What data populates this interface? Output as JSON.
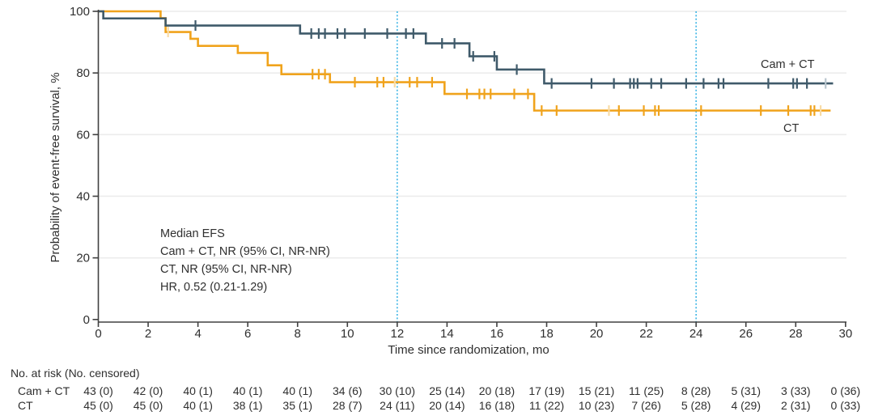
{
  "figure": {
    "y_axis_title": "Probability of event-free survival, %",
    "x_axis_title": "Time since randomization, mo",
    "annotation": {
      "lines": [
        "Median EFS",
        "Cam + CT, NR (95% CI, NR-NR)",
        "CT, NR (95% CI, NR-NR)",
        "HR, 0.52 (0.21-1.29)"
      ]
    },
    "curve_labels": {
      "cam_ct": "Cam + CT",
      "ct": "CT"
    }
  },
  "colors": {
    "cam_ct": "#3f5a6a",
    "cam_ct_pale": "#b9c6ce",
    "ct": "#f0a31c",
    "ct_pale": "#f8dba6",
    "reference_line": "#3cb4e5",
    "gridline": "#ececec",
    "axis": "#404040",
    "text": "#2f2f2f"
  },
  "chart_data": {
    "type": "line",
    "subtype": "kaplan-meier-step",
    "title": "",
    "xlabel": "Time since randomization, mo",
    "ylabel": "Probability of event-free survival, %",
    "xlim": [
      0,
      30
    ],
    "ylim": [
      0,
      100
    ],
    "x_ticks": [
      0,
      2,
      4,
      6,
      8,
      10,
      12,
      14,
      16,
      18,
      20,
      22,
      24,
      26,
      28,
      30
    ],
    "y_ticks": [
      0,
      20,
      40,
      60,
      80,
      100
    ],
    "grid": "horizontal-light",
    "legend_position": "labels-on-curves",
    "reference_lines_x": [
      12,
      24
    ],
    "series": [
      {
        "name": "CT",
        "color_key": "ct",
        "steps": [
          [
            0,
            100
          ],
          [
            2.5,
            97.8
          ],
          [
            2.7,
            93.3
          ],
          [
            3.7,
            91.1
          ],
          [
            4.0,
            88.8
          ],
          [
            5.6,
            86.5
          ],
          [
            6.8,
            82.5
          ],
          [
            7.35,
            79.6
          ],
          [
            9.3,
            77.0
          ],
          [
            13.9,
            73.2
          ],
          [
            17.5,
            67.8
          ]
        ],
        "end_x": 29.4,
        "censors": [
          [
            8.6,
            79.6
          ],
          [
            8.85,
            79.6
          ],
          [
            9.1,
            79.6
          ],
          [
            10.3,
            77.0
          ],
          [
            11.2,
            77.0
          ],
          [
            11.45,
            77.0
          ],
          [
            12.5,
            77.0
          ],
          [
            12.8,
            77.0
          ],
          [
            13.4,
            77.0
          ],
          [
            14.8,
            73.2
          ],
          [
            15.3,
            73.2
          ],
          [
            15.5,
            73.2
          ],
          [
            15.75,
            73.2
          ],
          [
            16.7,
            73.2
          ],
          [
            17.25,
            73.2
          ],
          [
            17.8,
            67.8
          ],
          [
            18.4,
            67.8
          ],
          [
            20.9,
            67.8
          ],
          [
            21.9,
            67.8
          ],
          [
            22.35,
            67.8
          ],
          [
            22.5,
            67.8
          ],
          [
            24.2,
            67.8
          ],
          [
            26.6,
            67.8
          ],
          [
            27.7,
            67.8
          ],
          [
            28.6,
            67.8
          ],
          [
            28.75,
            67.8
          ]
        ],
        "pale_censors": [
          [
            2.8,
            93.3
          ],
          [
            11.9,
            77.0
          ],
          [
            20.5,
            67.8
          ],
          [
            29.0,
            67.8
          ]
        ]
      },
      {
        "name": "Cam + CT",
        "color_key": "cam_ct",
        "steps": [
          [
            0,
            100
          ],
          [
            0.2,
            97.7
          ],
          [
            2.7,
            95.4
          ],
          [
            8.1,
            92.8
          ],
          [
            13.15,
            89.6
          ],
          [
            14.9,
            85.4
          ],
          [
            16.0,
            81.1
          ],
          [
            17.9,
            76.6
          ]
        ],
        "end_x": 29.5,
        "censors": [
          [
            3.9,
            95.4
          ],
          [
            8.55,
            92.8
          ],
          [
            8.85,
            92.8
          ],
          [
            9.1,
            92.8
          ],
          [
            9.6,
            92.8
          ],
          [
            9.9,
            92.8
          ],
          [
            10.7,
            92.8
          ],
          [
            11.6,
            92.8
          ],
          [
            12.35,
            92.8
          ],
          [
            12.65,
            92.8
          ],
          [
            13.8,
            89.6
          ],
          [
            14.3,
            89.6
          ],
          [
            15.05,
            85.4
          ],
          [
            15.9,
            85.4
          ],
          [
            16.8,
            81.1
          ],
          [
            18.2,
            76.6
          ],
          [
            19.8,
            76.6
          ],
          [
            20.7,
            76.6
          ],
          [
            21.35,
            76.6
          ],
          [
            21.5,
            76.6
          ],
          [
            21.65,
            76.6
          ],
          [
            22.2,
            76.6
          ],
          [
            22.6,
            76.6
          ],
          [
            23.6,
            76.6
          ],
          [
            24.3,
            76.6
          ],
          [
            24.9,
            76.6
          ],
          [
            25.1,
            76.6
          ],
          [
            26.9,
            76.6
          ],
          [
            27.9,
            76.6
          ],
          [
            28.05,
            76.6
          ],
          [
            28.45,
            76.6
          ]
        ],
        "pale_censors": [
          [
            29.2,
            76.6
          ]
        ]
      }
    ],
    "risk_table": {
      "header": "No. at risk (No. censored)",
      "times": [
        0,
        2,
        4,
        6,
        8,
        10,
        12,
        14,
        16,
        18,
        20,
        22,
        24,
        26,
        28,
        30
      ],
      "rows": [
        {
          "label": "Cam + CT",
          "values": [
            "43 (0)",
            "42 (0)",
            "40 (1)",
            "40 (1)",
            "40 (1)",
            "34 (6)",
            "30 (10)",
            "25 (14)",
            "20 (18)",
            "17 (19)",
            "15 (21)",
            "11 (25)",
            "8 (28)",
            "5 (31)",
            "3 (33)",
            "0 (36)"
          ]
        },
        {
          "label": "CT",
          "values": [
            "45 (0)",
            "45 (0)",
            "40 (1)",
            "38 (1)",
            "35 (1)",
            "28 (7)",
            "24 (11)",
            "20 (14)",
            "16 (18)",
            "11 (22)",
            "10 (23)",
            "7 (26)",
            "5 (28)",
            "4 (29)",
            "2 (31)",
            "0 (33)"
          ]
        }
      ]
    }
  }
}
